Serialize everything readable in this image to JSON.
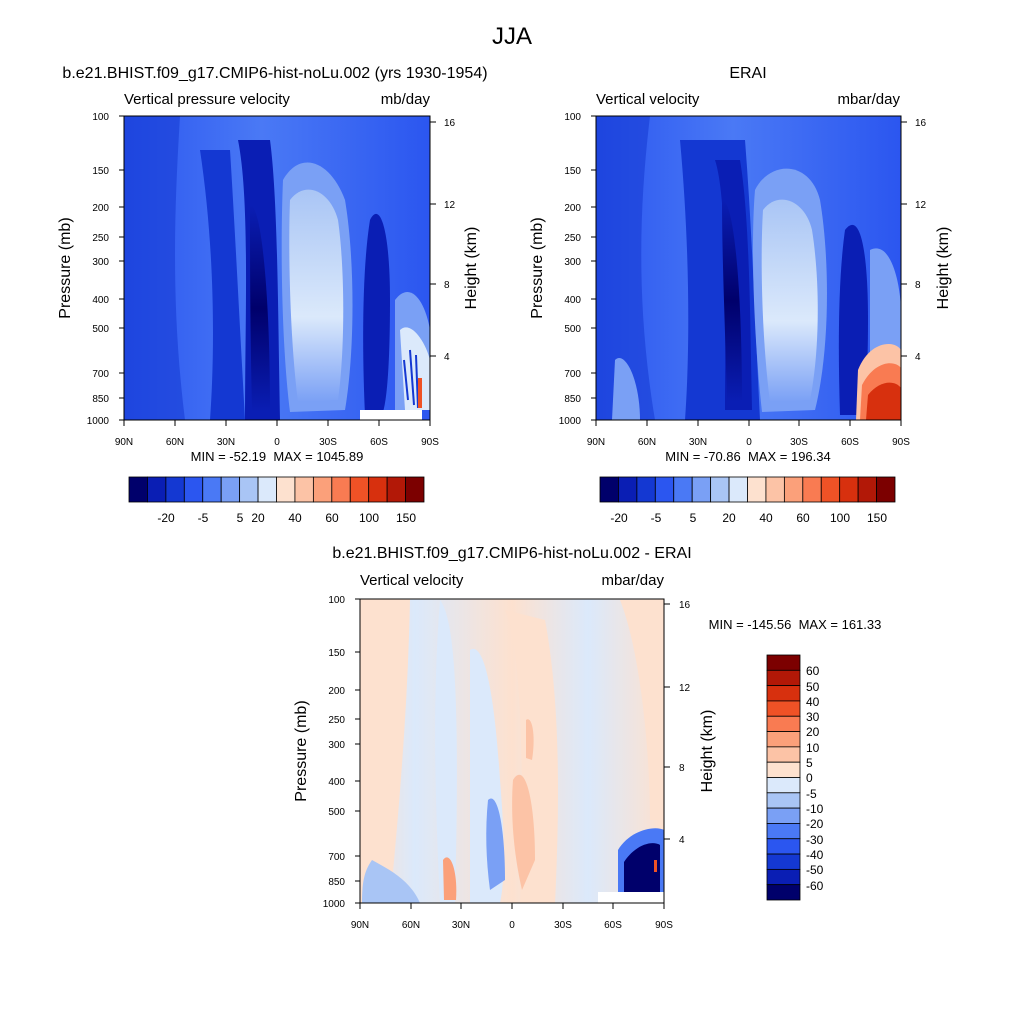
{
  "figure": {
    "title": "JJA"
  },
  "colors": {
    "model_obs_scale": [
      "#00006b",
      "#0a1eb4",
      "#1438d2",
      "#2b56f0",
      "#4a79f5",
      "#7aa0f5",
      "#a9c5f5",
      "#dbe9fb",
      "#fde1cf",
      "#fcc3a6",
      "#fba07a",
      "#f97b52",
      "#ef5226",
      "#d7300e",
      "#b21807",
      "#7c0000"
    ],
    "diff_scale": [
      "#00006b",
      "#0a1eb4",
      "#1438d2",
      "#2b56f0",
      "#4a79f5",
      "#7aa0f5",
      "#a9c5f5",
      "#dbe9fb",
      "#fde1cf",
      "#fcc3a6",
      "#fba07a",
      "#f97b52",
      "#ef5226",
      "#d7300e",
      "#b21807",
      "#7c0000"
    ]
  },
  "chart_data": [
    {
      "type": "heatmap",
      "title": "b.e21.BHIST.f09_g17.CMIP6-hist-noLu.002 (yrs 1930-1954)",
      "subtitle_left": "Vertical pressure velocity",
      "subtitle_right": "mb/day",
      "xlabel": "",
      "ylabel": "Pressure (mb)",
      "y2label": "Height (km)",
      "x_ticks": [
        "90N",
        "60N",
        "30N",
        "0",
        "30S",
        "60S",
        "90S"
      ],
      "y_ticks": [
        "100",
        "150",
        "200",
        "250",
        "300",
        "400",
        "500",
        "700",
        "850",
        "1000"
      ],
      "y2_ticks": [
        "16",
        "12",
        "8",
        "4"
      ],
      "stats": "MIN = -52.19  MAX = 1045.89",
      "colorbar_labels": [
        "-20",
        "-5",
        "5",
        "20",
        "40",
        "60",
        "100",
        "150"
      ]
    },
    {
      "type": "heatmap",
      "title": "ERAI",
      "subtitle_left": "Vertical velocity",
      "subtitle_right": "mbar/day",
      "xlabel": "",
      "ylabel": "Pressure (mb)",
      "y2label": "Height (km)",
      "x_ticks": [
        "90N",
        "60N",
        "30N",
        "0",
        "30S",
        "60S",
        "90S"
      ],
      "y_ticks": [
        "100",
        "150",
        "200",
        "250",
        "300",
        "400",
        "500",
        "700",
        "850",
        "1000"
      ],
      "y2_ticks": [
        "16",
        "12",
        "8",
        "4"
      ],
      "stats": "MIN = -70.86  MAX = 196.34",
      "colorbar_labels": [
        "-20",
        "-5",
        "5",
        "20",
        "40",
        "60",
        "100",
        "150"
      ]
    },
    {
      "type": "heatmap",
      "title": "b.e21.BHIST.f09_g17.CMIP6-hist-noLu.002 - ERAI",
      "subtitle_left": "Vertical velocity",
      "subtitle_right": "mbar/day",
      "xlabel": "",
      "ylabel": "Pressure (mb)",
      "y2label": "Height (km)",
      "x_ticks": [
        "90N",
        "60N",
        "30N",
        "0",
        "30S",
        "60S",
        "90S"
      ],
      "y_ticks": [
        "100",
        "150",
        "200",
        "250",
        "300",
        "400",
        "500",
        "700",
        "850",
        "1000"
      ],
      "y2_ticks": [
        "16",
        "12",
        "8",
        "4"
      ],
      "stats": "MIN = -145.56  MAX = 161.33",
      "colorbar_labels": [
        "60",
        "50",
        "40",
        "30",
        "20",
        "10",
        "5",
        "0",
        "-5",
        "-10",
        "-20",
        "-30",
        "-40",
        "-50",
        "-60"
      ]
    }
  ]
}
